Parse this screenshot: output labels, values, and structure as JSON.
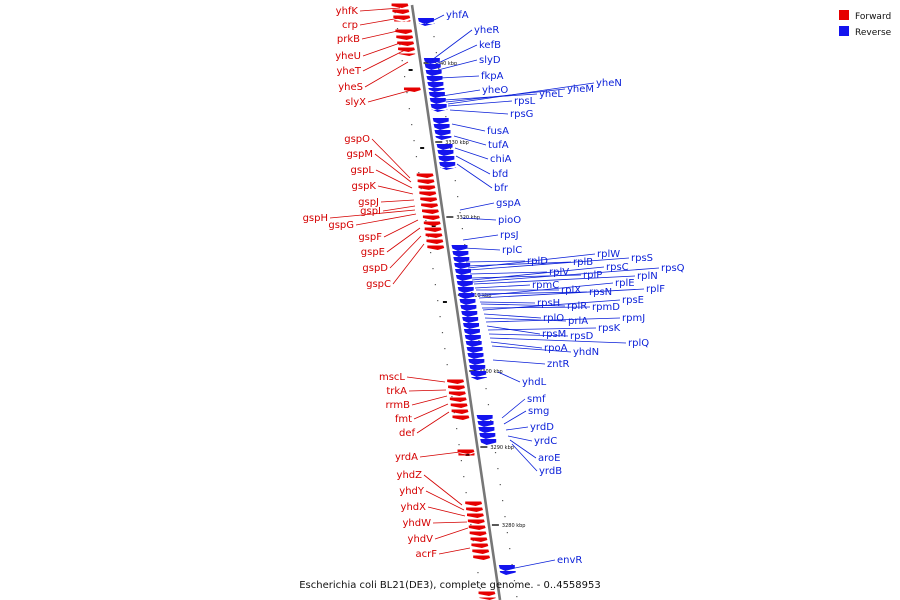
{
  "caption": "Escherichia coli BL21(DE3), complete genome. - 0..4558953",
  "legend": [
    {
      "label": "Forward",
      "color": "#e60000"
    },
    {
      "label": "Reverse",
      "color": "#1414ee"
    }
  ],
  "scale_ticks": [
    "3340 kbp",
    "3330 kbp",
    "3320 kbp",
    "3310 kbp",
    "3300 kbp",
    "3290 kbp",
    "3280 kbp"
  ],
  "forward_genes": [
    "yhfK",
    "crp",
    "prkB",
    "yheU",
    "yheT",
    "yheS",
    "slyX",
    "gspO",
    "gspM",
    "gspL",
    "gspK",
    "gspJ",
    "gspI",
    "gspH",
    "gspG",
    "gspF",
    "gspE",
    "gspD",
    "gspC",
    "mscL",
    "trkA",
    "rrmB",
    "fmt",
    "def",
    "yrdA",
    "yhdZ",
    "yhdY",
    "yhdX",
    "yhdW",
    "yhdV",
    "acrF"
  ],
  "reverse_genes": [
    "yhfA",
    "yheR",
    "kefB",
    "slyD",
    "fkpA",
    "yheO",
    "yheL",
    "yheM",
    "yheN",
    "rpsL",
    "rpsG",
    "fusA",
    "tufA",
    "chiA",
    "bfd",
    "bfr",
    "gspA",
    "pioO",
    "rpsJ",
    "rplC",
    "rplD",
    "rplB",
    "rplW",
    "rpsS",
    "rplV",
    "rplP",
    "rpsC",
    "rpsQ",
    "rplN",
    "rpmC",
    "rplX",
    "rpsN",
    "rplE",
    "rplF",
    "rpsH",
    "rplR",
    "rpmD",
    "rpsE",
    "rplO",
    "prlA",
    "rpmJ",
    "rpsM",
    "rpsK",
    "rpsD",
    "rplQ",
    "rpoA",
    "yhdN",
    "zntR",
    "yhdL",
    "smf",
    "smg",
    "yrdD",
    "yrdC",
    "aroE",
    "yrdB",
    "envR"
  ]
}
